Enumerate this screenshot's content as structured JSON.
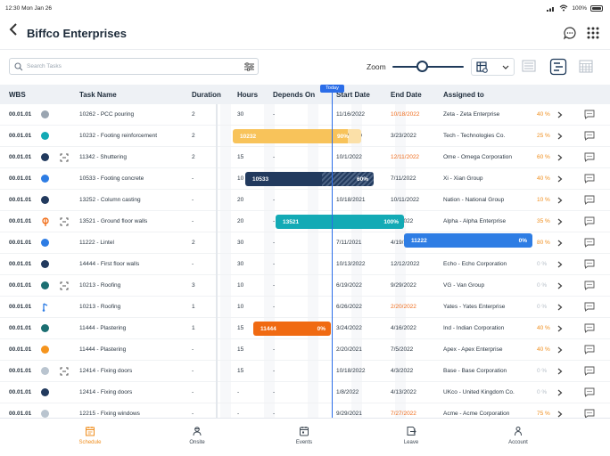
{
  "status": {
    "time": "12:30 Mon Jan 26",
    "battery": "100%"
  },
  "header": {
    "title": "Biffco Enterprises"
  },
  "toolbar": {
    "search_placeholder": "Search Tasks",
    "zoom_label": "Zoom",
    "zoom_level": 0.42
  },
  "columns": {
    "wbs": "WBS",
    "task": "Task Name",
    "duration": "Duration",
    "hours": "Hours",
    "depends": "Depends On",
    "start": "Start Date",
    "end": "End Date",
    "assigned": "Assigned to"
  },
  "today_label": "Today",
  "colors": {
    "accent": "#ef8d1c",
    "brand_navy": "#1f3a5a",
    "today_blue": "#2b6de8"
  },
  "rows": [
    {
      "wbs": "00.01.01",
      "status": "grey",
      "sub": false,
      "icon": "",
      "task": "10262 - PCC pouring",
      "duration": "2",
      "hours": "30",
      "depends": "-",
      "start": "11/16/2022",
      "end": "10/18/2022",
      "end_overdue": true,
      "assigned": "Zeta - Zeta Enterprise",
      "pct": "40 %",
      "pct_style": "orange"
    },
    {
      "wbs": "00.01.01",
      "status": "teal",
      "sub": false,
      "icon": "",
      "task": "10232 - Footing reinforcement",
      "duration": "2",
      "hours": "15",
      "depends": "-",
      "start": "10/2/2020",
      "end": "3/23/2022",
      "end_overdue": false,
      "assigned": "Tech - Technologies Co.",
      "pct": "25 %",
      "pct_style": "orange"
    },
    {
      "wbs": "00.01.01",
      "status": "navy",
      "sub": true,
      "icon": "",
      "task": "11342 - Shuttering",
      "duration": "2",
      "hours": "15",
      "depends": "-",
      "start": "10/1/2022",
      "end": "12/11/2022",
      "end_overdue": true,
      "assigned": "Ome - Omega Corporation",
      "pct": "60 %",
      "pct_style": "orange"
    },
    {
      "wbs": "00.01.01",
      "status": "blue",
      "sub": false,
      "icon": "",
      "task": "10533 - Footing concrete",
      "duration": "-",
      "hours": "10",
      "depends": "-",
      "start": "11/4/2021",
      "end": "7/11/2022",
      "end_overdue": false,
      "assigned": "Xi - Xian Group",
      "pct": "40 %",
      "pct_style": "orange"
    },
    {
      "wbs": "00.01.01",
      "status": "navy",
      "sub": false,
      "icon": "",
      "task": "13252 - Column casting",
      "duration": "-",
      "hours": "20",
      "depends": "-",
      "start": "10/18/2021",
      "end": "10/11/2022",
      "end_overdue": false,
      "assigned": "Nation - National Group",
      "pct": "10 %",
      "pct_style": "orange"
    },
    {
      "wbs": "00.01.01",
      "status": "ms",
      "sub": true,
      "icon": "",
      "task": "13521 - Ground floor walls",
      "duration": "-",
      "hours": "20",
      "depends": "-",
      "start": "3/16/2022",
      "end": "4/8/2022",
      "end_overdue": false,
      "assigned": "Alpha - Alpha Enterprise",
      "pct": "35 %",
      "pct_style": "orange"
    },
    {
      "wbs": "00.01.01",
      "status": "blue",
      "sub": false,
      "icon": "",
      "task": "11222 - Lintel",
      "duration": "2",
      "hours": "30",
      "depends": "-",
      "start": "7/11/2021",
      "end": "4/19/2022",
      "end_overdue": false,
      "assigned": "Lotus - Lotus Corporation",
      "pct": "80 %",
      "pct_style": "orange"
    },
    {
      "wbs": "00.01.01",
      "status": "navy",
      "sub": false,
      "icon": "",
      "task": "14444 - First floor walls",
      "duration": "-",
      "hours": "30",
      "depends": "-",
      "start": "10/13/2022",
      "end": "12/12/2022",
      "end_overdue": false,
      "assigned": "Echo - Echo Corporation",
      "pct": "0 %",
      "pct_style": "grey"
    },
    {
      "wbs": "00.01.01",
      "status": "tealdk",
      "sub": true,
      "icon": "",
      "task": "10213 - Roofing",
      "duration": "3",
      "hours": "10",
      "depends": "-",
      "start": "6/19/2022",
      "end": "9/29/2022",
      "end_overdue": false,
      "assigned": "VG - Van Group",
      "pct": "0 %",
      "pct_style": "grey"
    },
    {
      "wbs": "00.01.01",
      "status": "flag",
      "sub": false,
      "icon": "",
      "task": "10213 - Roofing",
      "duration": "1",
      "hours": "10",
      "depends": "-",
      "start": "6/26/2022",
      "end": "2/20/2022",
      "end_overdue": true,
      "assigned": "Yates - Yates Enterprise",
      "pct": "0 %",
      "pct_style": "grey"
    },
    {
      "wbs": "00.01.01",
      "status": "tealdk",
      "sub": false,
      "icon": "",
      "task": "11444 - Plastering",
      "duration": "1",
      "hours": "15",
      "depends": "-",
      "start": "3/24/2022",
      "end": "4/16/2022",
      "end_overdue": false,
      "assigned": "Ind - Indian Corporation",
      "pct": "40 %",
      "pct_style": "orange"
    },
    {
      "wbs": "00.01.01",
      "status": "orange",
      "sub": false,
      "icon": "",
      "task": "11444 - Plastering",
      "duration": "-",
      "hours": "15",
      "depends": "-",
      "start": "2/20/2021",
      "end": "7/5/2022",
      "end_overdue": false,
      "assigned": "Apex - Apex Enterprise",
      "pct": "40 %",
      "pct_style": "orange"
    },
    {
      "wbs": "00.01.01",
      "status": "ltgrey",
      "sub": true,
      "icon": "",
      "task": "12414 - Fixing doors",
      "duration": "-",
      "hours": "15",
      "depends": "-",
      "start": "10/18/2022",
      "end": "4/3/2022",
      "end_overdue": false,
      "assigned": "Base - Base Corporation",
      "pct": "0 %",
      "pct_style": "grey"
    },
    {
      "wbs": "00.01.01",
      "status": "navy",
      "sub": false,
      "icon": "",
      "task": "12414 - Fixing doors",
      "duration": "-",
      "hours": "-",
      "depends": "-",
      "start": "1/8/2022",
      "end": "4/13/2022",
      "end_overdue": false,
      "assigned": "UKco - United Kingdom Co.",
      "pct": "0 %",
      "pct_style": "grey"
    },
    {
      "wbs": "00.01.01",
      "status": "ltgrey",
      "sub": false,
      "icon": "",
      "task": "12215 - Fixing windows",
      "duration": "-",
      "hours": "-",
      "depends": "-",
      "start": "9/29/2021",
      "end": "7/27/2022",
      "end_overdue": true,
      "assigned": "Acme - Acme Corporation",
      "pct": "75 %",
      "pct_style": "orange"
    }
  ],
  "gantt_bars": [
    {
      "id": "10232",
      "pct": "90%",
      "pct_value": 0.9,
      "color": "#f8c35a",
      "row": 1
    },
    {
      "id": "10533",
      "pct": "60%",
      "pct_value": 0.6,
      "color": "#223a5e",
      "row": 3
    },
    {
      "id": "13521",
      "pct": "100%",
      "pct_value": 1.0,
      "color": "#13aab5",
      "row": 5
    },
    {
      "id": "11222",
      "pct": "0%",
      "pct_value": 0.0,
      "color": "#2e7de4",
      "row": 6
    },
    {
      "id": "11444",
      "pct": "0%",
      "pct_value": 0.0,
      "color": "#f06a12",
      "row": 10
    }
  ],
  "tabs": [
    {
      "label": "Schedule",
      "icon": "calendar-list-icon",
      "active": true
    },
    {
      "label": "Onsite",
      "icon": "worker-icon",
      "active": false
    },
    {
      "label": "Events",
      "icon": "calendar-icon",
      "active": false
    },
    {
      "label": "Leave",
      "icon": "leave-icon",
      "active": false
    },
    {
      "label": "Account",
      "icon": "person-icon",
      "active": false
    }
  ]
}
